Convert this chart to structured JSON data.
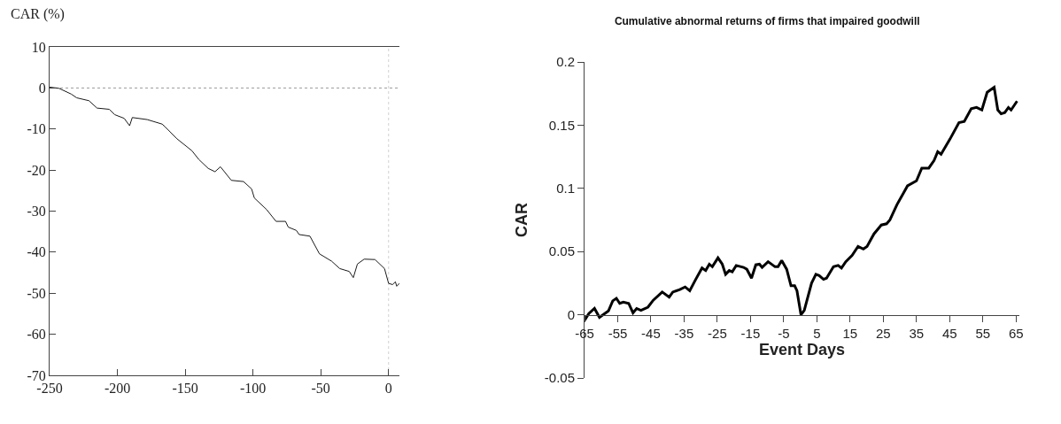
{
  "chart_data": [
    {
      "type": "line",
      "ylabel": "CAR (%)",
      "x": [
        -250,
        -243,
        -234,
        -230,
        -221,
        -215,
        -206,
        -202,
        -195,
        -191,
        -189,
        -178,
        -167,
        -165,
        -156,
        -145,
        -140,
        -133,
        -128,
        -124,
        -116,
        -107,
        -101,
        -99,
        -90,
        -83,
        -76,
        -74,
        -68,
        -66,
        -58,
        -51,
        -42,
        -36,
        -29,
        -26,
        -23,
        -18,
        -10,
        -3,
        0,
        3,
        5,
        6,
        8
      ],
      "series": [
        {
          "color": "#1a1a1a",
          "values": [
            0.2,
            -0.1,
            -1.5,
            -2.4,
            -3.1,
            -4.9,
            -5.2,
            -6.5,
            -7.4,
            -9.2,
            -7.2,
            -7.7,
            -8.8,
            -9.4,
            -12.4,
            -15.3,
            -17.4,
            -19.6,
            -20.4,
            -19.2,
            -22.5,
            -22.8,
            -24.6,
            -26.8,
            -29.6,
            -32.5,
            -32.5,
            -33.9,
            -34.7,
            -35.7,
            -36.1,
            -40.4,
            -42.2,
            -44.0,
            -44.7,
            -46.2,
            -42.9,
            -41.7,
            -41.8,
            -44.0,
            -47.6,
            -47.9,
            -47.2,
            -48.3,
            -47.6
          ]
        }
      ],
      "xlim": [
        -250,
        8
      ],
      "xticks": [
        -250,
        -200,
        -150,
        -100,
        -50,
        0
      ],
      "ylim": [
        -70,
        10
      ],
      "yticks": [
        -70,
        -60,
        -50,
        -40,
        -30,
        -20,
        -10,
        0,
        10
      ],
      "ref_lines": [
        {
          "axis": "y",
          "value": 0,
          "color": "#999999",
          "line_style": "dotted"
        },
        {
          "axis": "x",
          "value": 0,
          "color": "#d0d0d0",
          "line_style": "dotted"
        }
      ]
    },
    {
      "type": "line",
      "title": "Cumulative abnormal returns of firms that impaired goodwill",
      "xlabel": "Event Days",
      "ylabel": "CAR",
      "x": [
        -65,
        -63.7,
        -62,
        -60.5,
        -57.8,
        -56.5,
        -55.4,
        -54.4,
        -53.3,
        -51.7,
        -50.4,
        -49.3,
        -48,
        -45.9,
        -44.3,
        -41.6,
        -39.5,
        -38.4,
        -36.3,
        -34.7,
        -33.3,
        -31.5,
        -29.6,
        -28.5,
        -27.4,
        -26.5,
        -24.8,
        -23.5,
        -22.5,
        -21.4,
        -20.5,
        -19.3,
        -17.1,
        -16.1,
        -14.7,
        -13.4,
        -12.3,
        -11.5,
        -9.7,
        -7.6,
        -6.7,
        -5.6,
        -4.1,
        -2.8,
        -1.7,
        -1,
        0.2,
        1.2,
        3.4,
        4.7,
        5.7,
        7,
        7.9,
        10,
        11.4,
        12.4,
        13.7,
        15.6,
        17.4,
        19,
        20.1,
        22.2,
        24.4,
        26,
        27,
        29.1,
        32.3,
        35,
        36.6,
        38.7,
        40.3,
        41.4,
        42.4,
        45.1,
        47.8,
        49.4,
        51.5,
        53.1,
        54.7,
        56.3,
        58.4,
        59.5,
        60.5,
        61.6,
        62.7,
        63.5,
        65.3
      ],
      "series": [
        {
          "color": "#000000",
          "values": [
            -0.0045,
            0.001,
            0.005,
            -0.002,
            0.003,
            0.011,
            0.013,
            0.009,
            0.01,
            0.009,
            0.0015,
            0.005,
            0.0035,
            0.006,
            0.0115,
            0.018,
            0.014,
            0.018,
            0.02,
            0.022,
            0.019,
            0.028,
            0.037,
            0.035,
            0.04,
            0.038,
            0.045,
            0.04,
            0.032,
            0.035,
            0.034,
            0.039,
            0.0375,
            0.036,
            0.029,
            0.0395,
            0.04,
            0.0375,
            0.042,
            0.038,
            0.038,
            0.043,
            0.036,
            0.023,
            0.023,
            0.019,
            0.0,
            0.0035,
            0.025,
            0.032,
            0.031,
            0.028,
            0.029,
            0.038,
            0.039,
            0.037,
            0.042,
            0.047,
            0.054,
            0.052,
            0.054,
            0.064,
            0.071,
            0.072,
            0.075,
            0.087,
            0.102,
            0.106,
            0.116,
            0.116,
            0.122,
            0.129,
            0.127,
            0.139,
            0.152,
            0.153,
            0.163,
            0.164,
            0.162,
            0.176,
            0.18,
            0.162,
            0.159,
            0.16,
            0.164,
            0.162,
            0.169
          ]
        }
      ],
      "xlim": [
        -65,
        66
      ],
      "xticks": [
        -65,
        -55,
        -45,
        -35,
        -25,
        -15,
        -5,
        5,
        15,
        25,
        35,
        45,
        55,
        65
      ],
      "ylim": [
        -0.05,
        0.2
      ],
      "yticks": [
        -0.05,
        0,
        0.05,
        0.1,
        0.15,
        0.2
      ]
    }
  ]
}
